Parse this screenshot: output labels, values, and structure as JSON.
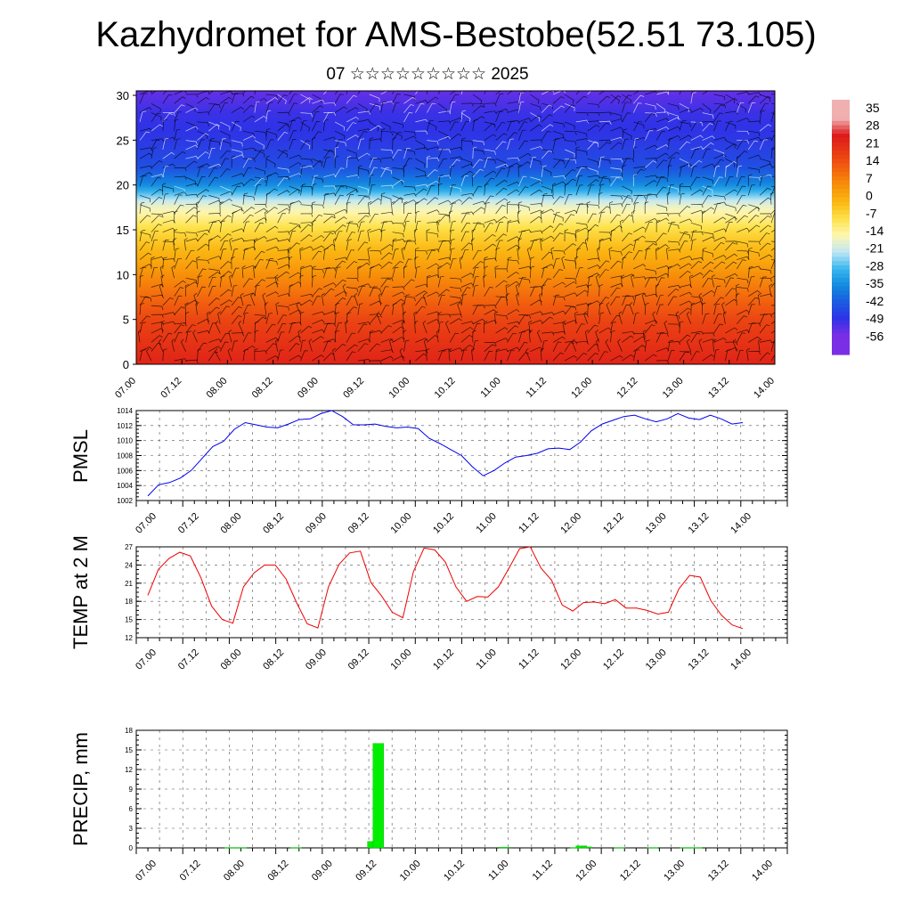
{
  "title": "Kazhydromet for AMS-Bestobe(52.51 73.105)",
  "subtitle": "07 ☆☆☆☆☆☆☆☆☆ 2025",
  "chart_data": [
    {
      "type": "heatmap",
      "name": "temperature cross-section with wind barbs",
      "x_ticks": [
        "07.00",
        "07.12",
        "08.00",
        "08.12",
        "09.00",
        "09.12",
        "10.00",
        "10.12",
        "11.00",
        "11.12",
        "12.00",
        "12.12",
        "13.00",
        "13.12",
        "14.00"
      ],
      "y_ticks": [
        "0",
        "5",
        "10",
        "15",
        "20",
        "25",
        "30"
      ],
      "ylim": [
        0,
        30.5
      ],
      "colorbar": {
        "labels": [
          "35",
          "28",
          "21",
          "14",
          "7",
          "0",
          "-7",
          "-14",
          "-21",
          "-28",
          "-35",
          "-42",
          "-49",
          "-56"
        ],
        "colors": [
          "#f0b0b0",
          "#dd1a1a",
          "#e83a14",
          "#f2620e",
          "#f7900a",
          "#fbb712",
          "#fde24a",
          "#fff7b0",
          "#bfe6f5",
          "#3ab7ee",
          "#128adf",
          "#1b5be0",
          "#2f32e6",
          "#7a2ee6"
        ]
      },
      "temperature_profile": {
        "heights": [
          0,
          5,
          10,
          15,
          18,
          20,
          22,
          25,
          28,
          30.5
        ],
        "values": [
          26,
          19,
          7,
          -6,
          -18,
          -35,
          -44,
          -48,
          -50,
          -54
        ]
      }
    },
    {
      "type": "line",
      "ylabel": "PMSL",
      "ylim": [
        1002,
        1014
      ],
      "y_ticks": [
        "1002",
        "1004",
        "1006",
        "1008",
        "1010",
        "1012",
        "1014"
      ],
      "x_ticks": [
        "07.00",
        "07.12",
        "08.00",
        "08.12",
        "09.00",
        "09.12",
        "10.00",
        "10.12",
        "11.00",
        "11.12",
        "12.00",
        "12.12",
        "13.00",
        "13.12",
        "14.00"
      ],
      "color": "#0000ee",
      "values": [
        1002.6,
        1004.1,
        1004.4,
        1005.0,
        1006.0,
        1007.6,
        1009.2,
        1009.9,
        1011.5,
        1012.4,
        1012.1,
        1011.8,
        1011.7,
        1012.2,
        1012.8,
        1012.9,
        1013.6,
        1014.0,
        1013.2,
        1012.1,
        1012.1,
        1012.2,
        1011.9,
        1011.7,
        1011.8,
        1011.6,
        1010.3,
        1009.6,
        1008.8,
        1008.0,
        1006.5,
        1005.3,
        1006.0,
        1007.0,
        1007.8,
        1008.0,
        1008.3,
        1008.9,
        1009.0,
        1008.8,
        1009.8,
        1011.3,
        1012.2,
        1012.7,
        1013.2,
        1013.4,
        1012.9,
        1012.5,
        1012.9,
        1013.6,
        1013.0,
        1012.8,
        1013.4,
        1012.9,
        1012.2,
        1012.4
      ]
    },
    {
      "type": "line",
      "ylabel": "TEMP at 2 M",
      "ylim": [
        12,
        27
      ],
      "y_ticks": [
        "12",
        "15",
        "18",
        "21",
        "24",
        "27"
      ],
      "x_ticks": [
        "07.00",
        "07.12",
        "08.00",
        "08.12",
        "09.00",
        "09.12",
        "10.00",
        "10.12",
        "11.00",
        "11.12",
        "12.00",
        "12.12",
        "13.00",
        "13.12",
        "14.00"
      ],
      "color": "#ee0000",
      "values": [
        19.0,
        23.3,
        25.1,
        26.1,
        25.5,
        21.9,
        17.2,
        15.0,
        14.4,
        20.4,
        22.7,
        24.0,
        24.0,
        21.7,
        17.8,
        14.3,
        13.6,
        20.4,
        24.1,
        26.0,
        26.3,
        21.1,
        18.9,
        16.2,
        15.3,
        22.9,
        26.8,
        26.5,
        24.5,
        20.4,
        18.0,
        18.8,
        18.7,
        20.4,
        23.5,
        26.7,
        27.0,
        23.5,
        21.5,
        17.4,
        16.4,
        17.8,
        17.9,
        17.6,
        18.3,
        16.9,
        16.9,
        16.5,
        15.9,
        16.2,
        20.1,
        22.3,
        22.0,
        18.1,
        15.7,
        14.1,
        13.5
      ]
    },
    {
      "type": "bar",
      "ylabel": "PRECIP, mm",
      "ylim": [
        0,
        18
      ],
      "y_ticks": [
        "0",
        "3",
        "6",
        "9",
        "12",
        "15",
        "18"
      ],
      "x_ticks": [
        "07.00",
        "07.12",
        "08.00",
        "08.12",
        "09.00",
        "09.12",
        "10.00",
        "10.12",
        "11.00",
        "11.12",
        "12.00",
        "12.12",
        "13.00",
        "13.12",
        "14.00"
      ],
      "color": "#00ee00",
      "bars": [
        {
          "at": 3.75,
          "value": 0.05
        },
        {
          "at": 4.25,
          "value": 0.05
        },
        {
          "at": 6.75,
          "value": 0.05
        },
        {
          "at": 10.25,
          "value": 1.0
        },
        {
          "at": 10.5,
          "value": 16.0
        },
        {
          "at": 16.25,
          "value": 0.1
        },
        {
          "at": 19.5,
          "value": 0.05
        },
        {
          "at": 19.75,
          "value": 0.3
        },
        {
          "at": 20.0,
          "value": 0.15
        },
        {
          "at": 21.5,
          "value": 0.05
        },
        {
          "at": 23.0,
          "value": 0.05
        },
        {
          "at": 24.5,
          "value": 0.05
        },
        {
          "at": 25.0,
          "value": 0.05
        }
      ]
    }
  ]
}
